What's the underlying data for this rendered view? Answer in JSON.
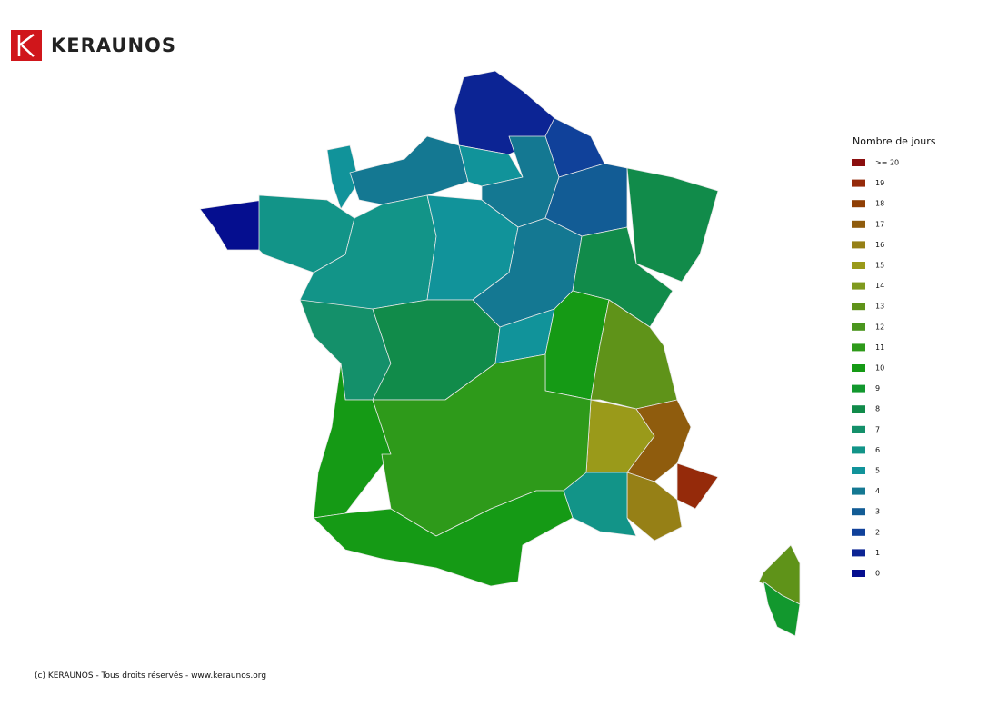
{
  "header": {
    "logo": "KERAUNOS"
  },
  "legend": {
    "title": "Nombre de jours",
    "items": [
      {
        "label": ">= 20",
        "color": "#8b0f0f"
      },
      {
        "label": "19",
        "color": "#952a0a"
      },
      {
        "label": "18",
        "color": "#8f3f05"
      },
      {
        "label": "17",
        "color": "#8f5c0d"
      },
      {
        "label": "16",
        "color": "#968016"
      },
      {
        "label": "15",
        "color": "#9a9a1a"
      },
      {
        "label": "14",
        "color": "#7f9a1e"
      },
      {
        "label": "13",
        "color": "#5f9319"
      },
      {
        "label": "12",
        "color": "#4a961e"
      },
      {
        "label": "11",
        "color": "#2e9a1a"
      },
      {
        "label": "10",
        "color": "#159a15"
      },
      {
        "label": "9",
        "color": "#12982e"
      },
      {
        "label": "8",
        "color": "#118b4a"
      },
      {
        "label": "7",
        "color": "#14906a"
      },
      {
        "label": "6",
        "color": "#129488"
      },
      {
        "label": "5",
        "color": "#11939a"
      },
      {
        "label": "4",
        "color": "#147892"
      },
      {
        "label": "3",
        "color": "#125c95"
      },
      {
        "label": "2",
        "color": "#10419a"
      },
      {
        "label": "1",
        "color": "#0c2494"
      },
      {
        "label": "0",
        "color": "#050e8f"
      }
    ]
  },
  "map": {
    "values": [
      1,
      2,
      5,
      4,
      5,
      4,
      3,
      8,
      0,
      6,
      6,
      5,
      4,
      8,
      7,
      8,
      5,
      10,
      13,
      15,
      17,
      19,
      16,
      6,
      10,
      11,
      10,
      13,
      9
    ]
  },
  "footer": "(c) KERAUNOS - Tous droits réservés - www.keraunos.org"
}
